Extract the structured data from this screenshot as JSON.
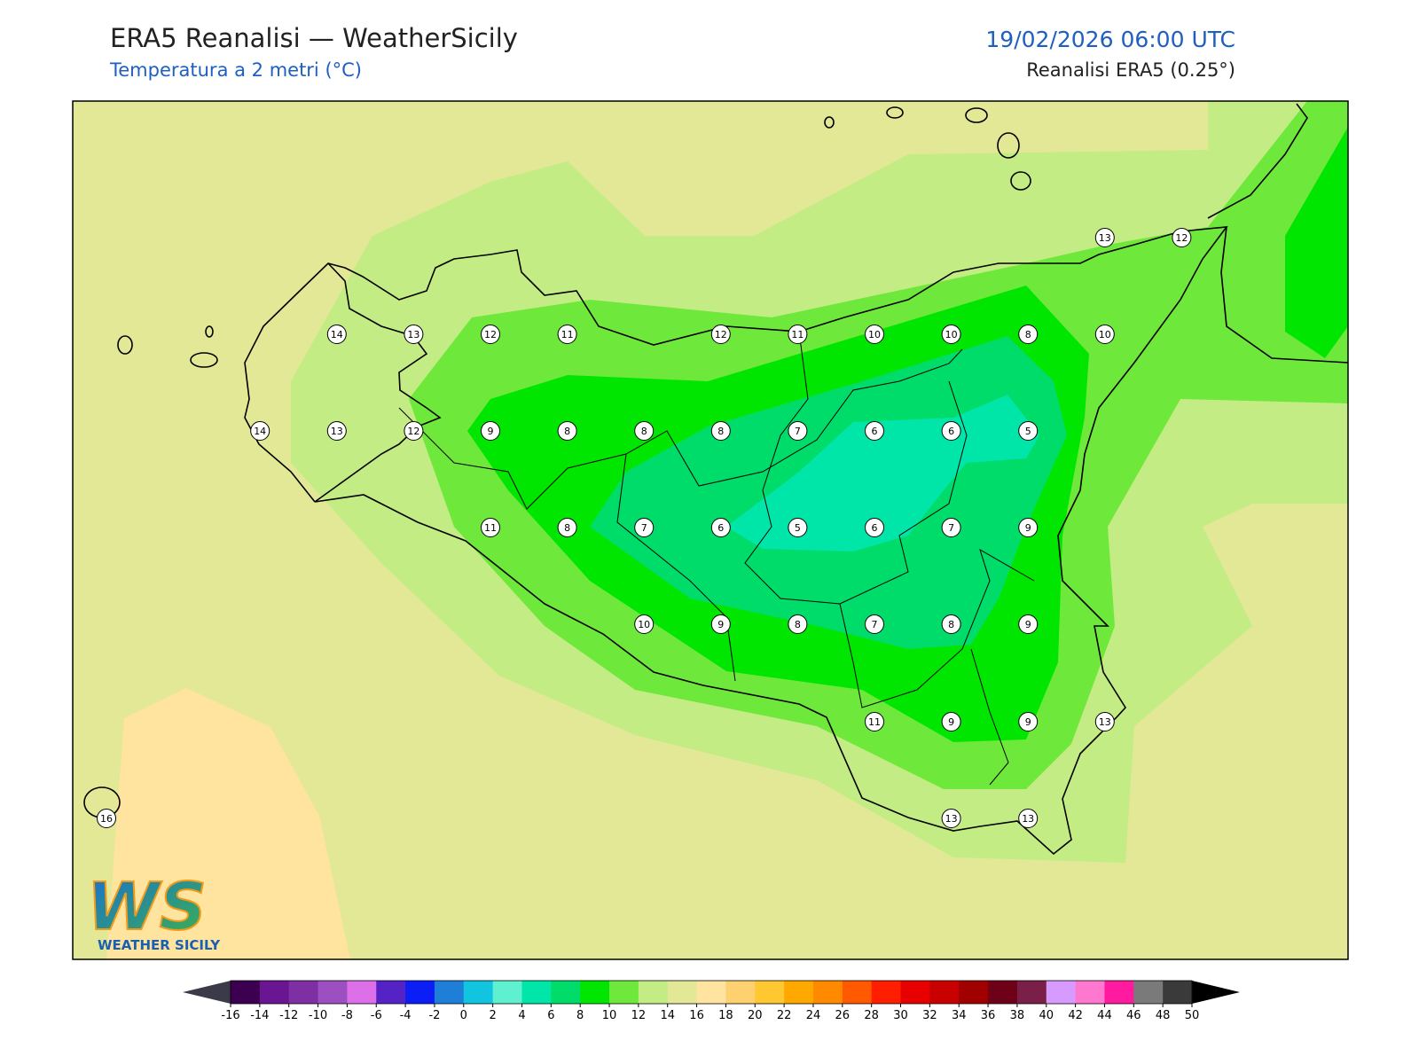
{
  "header": {
    "title": "ERA5 Reanalisi — WeatherSicily",
    "subtitle": "Temperatura a 2 metri (°C)",
    "datetime": "19/02/2026 06:00 UTC",
    "source": "Reanalisi ERA5 (0.25°)"
  },
  "grid_labels": [
    [
      null,
      null,
      null,
      null,
      null,
      null,
      null,
      null,
      null,
      null,
      null,
      null,
      null,
      13,
      12
    ],
    [
      null,
      null,
      null,
      14,
      13,
      12,
      11,
      null,
      12,
      11,
      10,
      10,
      8,
      10,
      null
    ],
    [
      null,
      null,
      14,
      13,
      12,
      9,
      8,
      8,
      8,
      7,
      6,
      6,
      5,
      null,
      null
    ],
    [
      null,
      null,
      null,
      null,
      null,
      11,
      8,
      7,
      6,
      5,
      6,
      7,
      9,
      null,
      null
    ],
    [
      null,
      null,
      null,
      null,
      null,
      null,
      null,
      10,
      9,
      8,
      7,
      8,
      9,
      null,
      null
    ],
    [
      null,
      null,
      null,
      null,
      null,
      null,
      null,
      null,
      null,
      null,
      11,
      9,
      9,
      13,
      null
    ],
    [
      16,
      null,
      null,
      null,
      null,
      null,
      null,
      null,
      null,
      null,
      null,
      13,
      13,
      null,
      null
    ]
  ],
  "colorbar": {
    "ticks": [
      -16,
      -14,
      -12,
      -10,
      -8,
      -6,
      -4,
      -2,
      0,
      2,
      4,
      6,
      8,
      10,
      12,
      14,
      16,
      18,
      20,
      22,
      24,
      26,
      28,
      30,
      32,
      34,
      36,
      38,
      40,
      42,
      44,
      46,
      48,
      50
    ],
    "colors": [
      "#3d0050",
      "#6a1591",
      "#7e2fa3",
      "#9c4fc0",
      "#dd6fe8",
      "#5522c6",
      "#0a1ef5",
      "#1f7fd8",
      "#11c4e0",
      "#5ff0d0",
      "#00e5a8",
      "#00dc6a",
      "#00e600",
      "#6fe83c",
      "#c4ec84",
      "#e2e896",
      "#ffe4a0",
      "#fdd070",
      "#ffc830",
      "#ffa800",
      "#ff8a00",
      "#ff5a00",
      "#ff1e00",
      "#e80000",
      "#c80000",
      "#a00000",
      "#6e0018",
      "#7a2048",
      "#d79bff",
      "#ff78d0",
      "#ff1aa0",
      "#7a7a7a",
      "#3a3a3a"
    ],
    "under_color": "#3a3a48",
    "over_color": "#000000"
  },
  "logo": {
    "mark": "WS",
    "text": "WEATHER SICILY"
  }
}
